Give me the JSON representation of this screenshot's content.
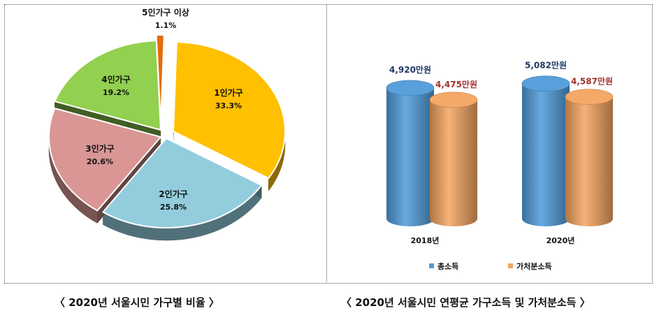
{
  "captions": {
    "left": "〈 2020년 서울시민 가구별 비율 〉",
    "right": "〈 2020년 서울시민 연평균 가구소득 및 가처분소득 〉"
  },
  "chart_data": [
    {
      "type": "pie",
      "title": "",
      "slices": [
        {
          "label": "1인가구",
          "value": 33.3,
          "value_label": "33.3%",
          "color": "#FFC000"
        },
        {
          "label": "2인가구",
          "value": 25.8,
          "value_label": "25.8%",
          "color": "#93CDDD"
        },
        {
          "label": "3인가구",
          "value": 20.6,
          "value_label": "20.6%",
          "color": "#D99694"
        },
        {
          "label": "4인가구",
          "value": 19.2,
          "value_label": "19.2%",
          "color": "#92D050"
        },
        {
          "label": "5인가구 이상",
          "value": 1.1,
          "value_label": "1.1%",
          "color": "#E46C0A"
        }
      ]
    },
    {
      "type": "bar",
      "title": "",
      "categories": [
        "2018년",
        "2020년"
      ],
      "series": [
        {
          "name": "총소득",
          "values": [
            4920,
            5082
          ],
          "value_labels": [
            "4,920만원",
            "5,082만원"
          ],
          "color": "#4F9BD9",
          "label_color": "#1F3864"
        },
        {
          "name": "가처분소득",
          "values": [
            4475,
            4587
          ],
          "value_labels": [
            "4,475만원",
            "4,587만원"
          ],
          "color": "#F4A460",
          "label_color": "#A0322D"
        }
      ]
    }
  ]
}
